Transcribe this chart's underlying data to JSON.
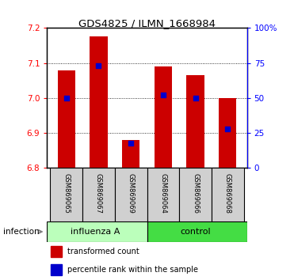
{
  "title": "GDS4825 / ILMN_1668984",
  "samples": [
    "GSM869065",
    "GSM869067",
    "GSM869069",
    "GSM869064",
    "GSM869066",
    "GSM869068"
  ],
  "group_label": "infection",
  "transformed_counts": [
    7.08,
    7.175,
    6.88,
    7.09,
    7.065,
    7.0
  ],
  "percentile_ranks": [
    50,
    73,
    18,
    52,
    50,
    28
  ],
  "ylim": [
    6.8,
    7.2
  ],
  "yticks": [
    6.8,
    6.9,
    7.0,
    7.1,
    7.2
  ],
  "right_yticks": [
    0,
    25,
    50,
    75,
    100
  ],
  "right_yticklabels": [
    "0",
    "25",
    "50",
    "75",
    "100%"
  ],
  "bar_color": "#cc0000",
  "dot_color": "#0000cc",
  "bar_width": 0.55,
  "group1_color": "#bbffbb",
  "group2_color": "#44dd44",
  "group1_label": "influenza A",
  "group2_label": "control",
  "legend_red_label": "transformed count",
  "legend_blue_label": "percentile rank within the sample",
  "sample_box_color": "#d0d0d0",
  "plot_bg_color": "#ffffff"
}
